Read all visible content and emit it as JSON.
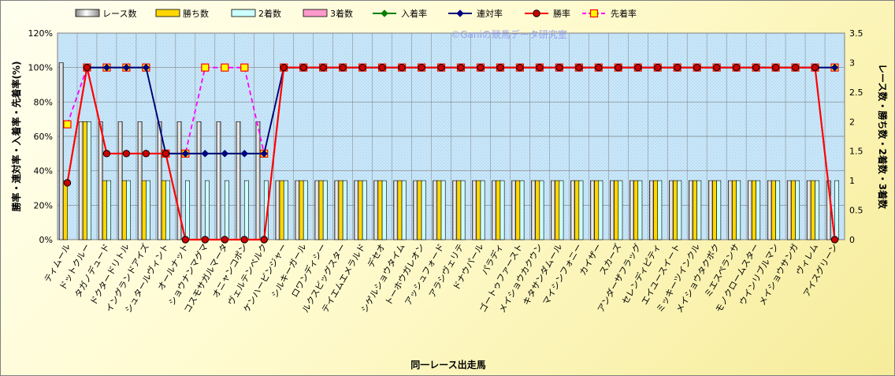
{
  "chart_data": {
    "type": "bar",
    "watermark": "©Ganiの競馬データ研究室",
    "xlabel": "同一レース出走馬",
    "ylabel_left": "勝率・連対率・入着率・先着率(%)",
    "ylabel_right": "レース数・勝ち数・2着数・3着数",
    "ylim_left": [
      0,
      120
    ],
    "ylim_right": [
      0,
      3.5
    ],
    "yticks_left": [
      "0%",
      "20%",
      "40%",
      "60%",
      "80%",
      "100%",
      "120%"
    ],
    "yticks_right": [
      "0",
      "0.5",
      "1",
      "1.5",
      "2",
      "2.5",
      "3",
      "3.5"
    ],
    "legend": [
      "レース数",
      "勝ち数",
      "2着数",
      "3着数",
      "入着率",
      "連対率",
      "勝率",
      "先着率"
    ],
    "colors": {
      "races": "#ffffff",
      "wins": "#ffd700",
      "second": "#ccffff",
      "third": "#ff99cc",
      "entry_rate": "#008000",
      "rentai_rate": "#000080",
      "win_rate": "#ff0000",
      "senchaku_rate": "#ff00ff",
      "plot_bg": "#c8e6f8",
      "grid": "#7f7f7f"
    },
    "categories": [
      "ティムール",
      "ドットクルー",
      "タガノデュード",
      "ドクタードリトル",
      "イングランドアイズ",
      "シュタールヴィント",
      "オールナット",
      "ショウナンマグマ",
      "コスモサガルマータ",
      "オニャンコポン",
      "ヴェルテンベルク",
      "ケンハービンジャー",
      "シルキーガール",
      "ロワンディシー",
      "ルクスビッグスター",
      "テイエムエメラルド",
      "デセオ",
      "シゲルショウタイム",
      "トーホウガレオン",
      "アッシュフォード",
      "アラシヴェリテ",
      "ドナウパール",
      "パラディ",
      "ゴートゥファースト",
      "メイショウカクウン",
      "キタサンダムール",
      "マイシンフォニー",
      "カイザー",
      "スカーズ",
      "アンダーザフラッグ",
      "セレンディピティ",
      "エイユースイート",
      "ミッキーツインクル",
      "メイショウタクボク",
      "ミエスペランサ",
      "モノクロームスター",
      "ウインリブルマン",
      "メイショウサンガ",
      "ヴィレム",
      "アイスグリーン"
    ],
    "series": [
      {
        "name": "レース数",
        "axis": "right",
        "values": [
          3,
          2,
          2,
          2,
          2,
          2,
          2,
          2,
          2,
          2,
          2,
          1,
          1,
          1,
          1,
          1,
          1,
          1,
          1,
          1,
          1,
          1,
          1,
          1,
          1,
          1,
          1,
          1,
          1,
          1,
          1,
          1,
          1,
          1,
          1,
          1,
          1,
          1,
          1,
          1
        ]
      },
      {
        "name": "勝ち数",
        "axis": "right",
        "values": [
          1,
          2,
          1,
          1,
          1,
          1,
          0,
          0,
          0,
          0,
          0,
          1,
          1,
          1,
          1,
          1,
          1,
          1,
          1,
          1,
          1,
          1,
          1,
          1,
          1,
          1,
          1,
          1,
          1,
          1,
          1,
          1,
          1,
          1,
          1,
          1,
          1,
          1,
          1,
          0
        ]
      },
      {
        "name": "2着数",
        "axis": "right",
        "values": [
          0,
          2,
          1,
          1,
          1,
          1,
          1,
          1,
          1,
          1,
          1,
          1,
          1,
          1,
          1,
          1,
          1,
          1,
          1,
          1,
          1,
          1,
          1,
          1,
          1,
          1,
          1,
          1,
          1,
          1,
          1,
          1,
          1,
          1,
          1,
          1,
          1,
          1,
          1,
          1
        ]
      },
      {
        "name": "3着数",
        "axis": "right",
        "values": [
          0,
          0,
          0,
          0,
          0,
          0,
          0,
          0,
          0,
          0,
          0,
          0,
          0,
          0,
          0,
          0,
          0,
          0,
          0,
          0,
          0,
          0,
          0,
          0,
          0,
          0,
          0,
          0,
          0,
          0,
          0,
          0,
          0,
          0,
          0,
          0,
          0,
          0,
          0,
          0
        ]
      },
      {
        "name": "入着率",
        "axis": "left",
        "values": [
          null,
          100,
          100,
          100,
          100,
          50,
          50,
          50,
          50,
          50,
          50,
          100,
          100,
          100,
          100,
          100,
          100,
          100,
          100,
          100,
          100,
          100,
          100,
          100,
          100,
          100,
          100,
          100,
          100,
          100,
          100,
          100,
          100,
          100,
          100,
          100,
          100,
          100,
          100,
          100
        ]
      },
      {
        "name": "連対率",
        "axis": "left",
        "values": [
          null,
          100,
          100,
          100,
          100,
          50,
          50,
          50,
          50,
          50,
          50,
          100,
          100,
          100,
          100,
          100,
          100,
          100,
          100,
          100,
          100,
          100,
          100,
          100,
          100,
          100,
          100,
          100,
          100,
          100,
          100,
          100,
          100,
          100,
          100,
          100,
          100,
          100,
          100,
          100
        ]
      },
      {
        "name": "勝率",
        "axis": "left",
        "values": [
          33,
          100,
          50,
          50,
          50,
          50,
          0,
          0,
          0,
          0,
          0,
          100,
          100,
          100,
          100,
          100,
          100,
          100,
          100,
          100,
          100,
          100,
          100,
          100,
          100,
          100,
          100,
          100,
          100,
          100,
          100,
          100,
          100,
          100,
          100,
          100,
          100,
          100,
          100,
          0
        ]
      },
      {
        "name": "先着率",
        "axis": "left",
        "values": [
          67,
          100,
          100,
          100,
          100,
          50,
          50,
          100,
          100,
          100,
          50,
          100,
          100,
          100,
          100,
          100,
          100,
          100,
          100,
          100,
          100,
          100,
          100,
          100,
          100,
          100,
          100,
          100,
          100,
          100,
          100,
          100,
          100,
          100,
          100,
          100,
          100,
          100,
          100,
          100
        ]
      }
    ]
  }
}
